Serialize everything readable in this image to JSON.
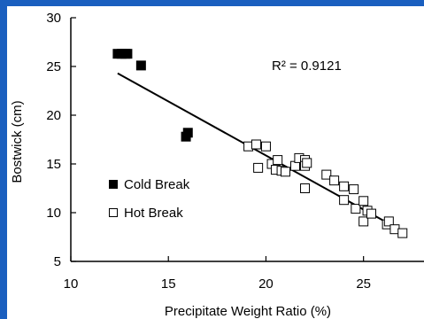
{
  "chart_data": {
    "type": "scatter",
    "title": "",
    "xlabel": "Precipitate Weight Ratio (%)",
    "ylabel": "Bostwick (cm)",
    "xlim": [
      10,
      27
    ],
    "ylim": [
      5,
      30
    ],
    "x_ticks": [
      10,
      15,
      20,
      25
    ],
    "y_ticks": [
      5,
      10,
      15,
      20,
      25,
      30
    ],
    "grid": false,
    "legend_position": "left",
    "annotation": "R² = 0.9121",
    "series": [
      {
        "name": "Cold Break",
        "marker": "filled-square",
        "color": "#000000",
        "points": [
          [
            12.4,
            26.3
          ],
          [
            12.6,
            26.3
          ],
          [
            12.8,
            26.3
          ],
          [
            12.9,
            26.3
          ],
          [
            13.6,
            25.1
          ],
          [
            15.9,
            17.8
          ],
          [
            16.0,
            18.2
          ]
        ]
      },
      {
        "name": "Hot Break",
        "marker": "open-square",
        "color": "#000000",
        "points": [
          [
            19.1,
            16.8
          ],
          [
            19.5,
            17.0
          ],
          [
            19.6,
            14.6
          ],
          [
            20.0,
            16.8
          ],
          [
            20.3,
            15.0
          ],
          [
            20.5,
            14.4
          ],
          [
            20.6,
            15.4
          ],
          [
            20.8,
            14.3
          ],
          [
            21.0,
            14.2
          ],
          [
            21.5,
            14.8
          ],
          [
            21.7,
            15.6
          ],
          [
            22.0,
            15.4
          ],
          [
            22.0,
            14.8
          ],
          [
            22.1,
            15.1
          ],
          [
            22.0,
            12.5
          ],
          [
            23.1,
            13.9
          ],
          [
            23.5,
            13.3
          ],
          [
            24.0,
            12.7
          ],
          [
            24.0,
            11.3
          ],
          [
            24.5,
            12.4
          ],
          [
            24.6,
            10.4
          ],
          [
            25.0,
            11.2
          ],
          [
            25.0,
            9.1
          ],
          [
            25.2,
            10.2
          ],
          [
            25.4,
            9.9
          ],
          [
            26.2,
            8.8
          ],
          [
            26.3,
            9.1
          ],
          [
            26.6,
            8.3
          ],
          [
            27.0,
            7.9
          ]
        ]
      }
    ],
    "trendline": {
      "x": [
        12.4,
        27.0
      ],
      "y": [
        24.3,
        8.1
      ]
    }
  }
}
